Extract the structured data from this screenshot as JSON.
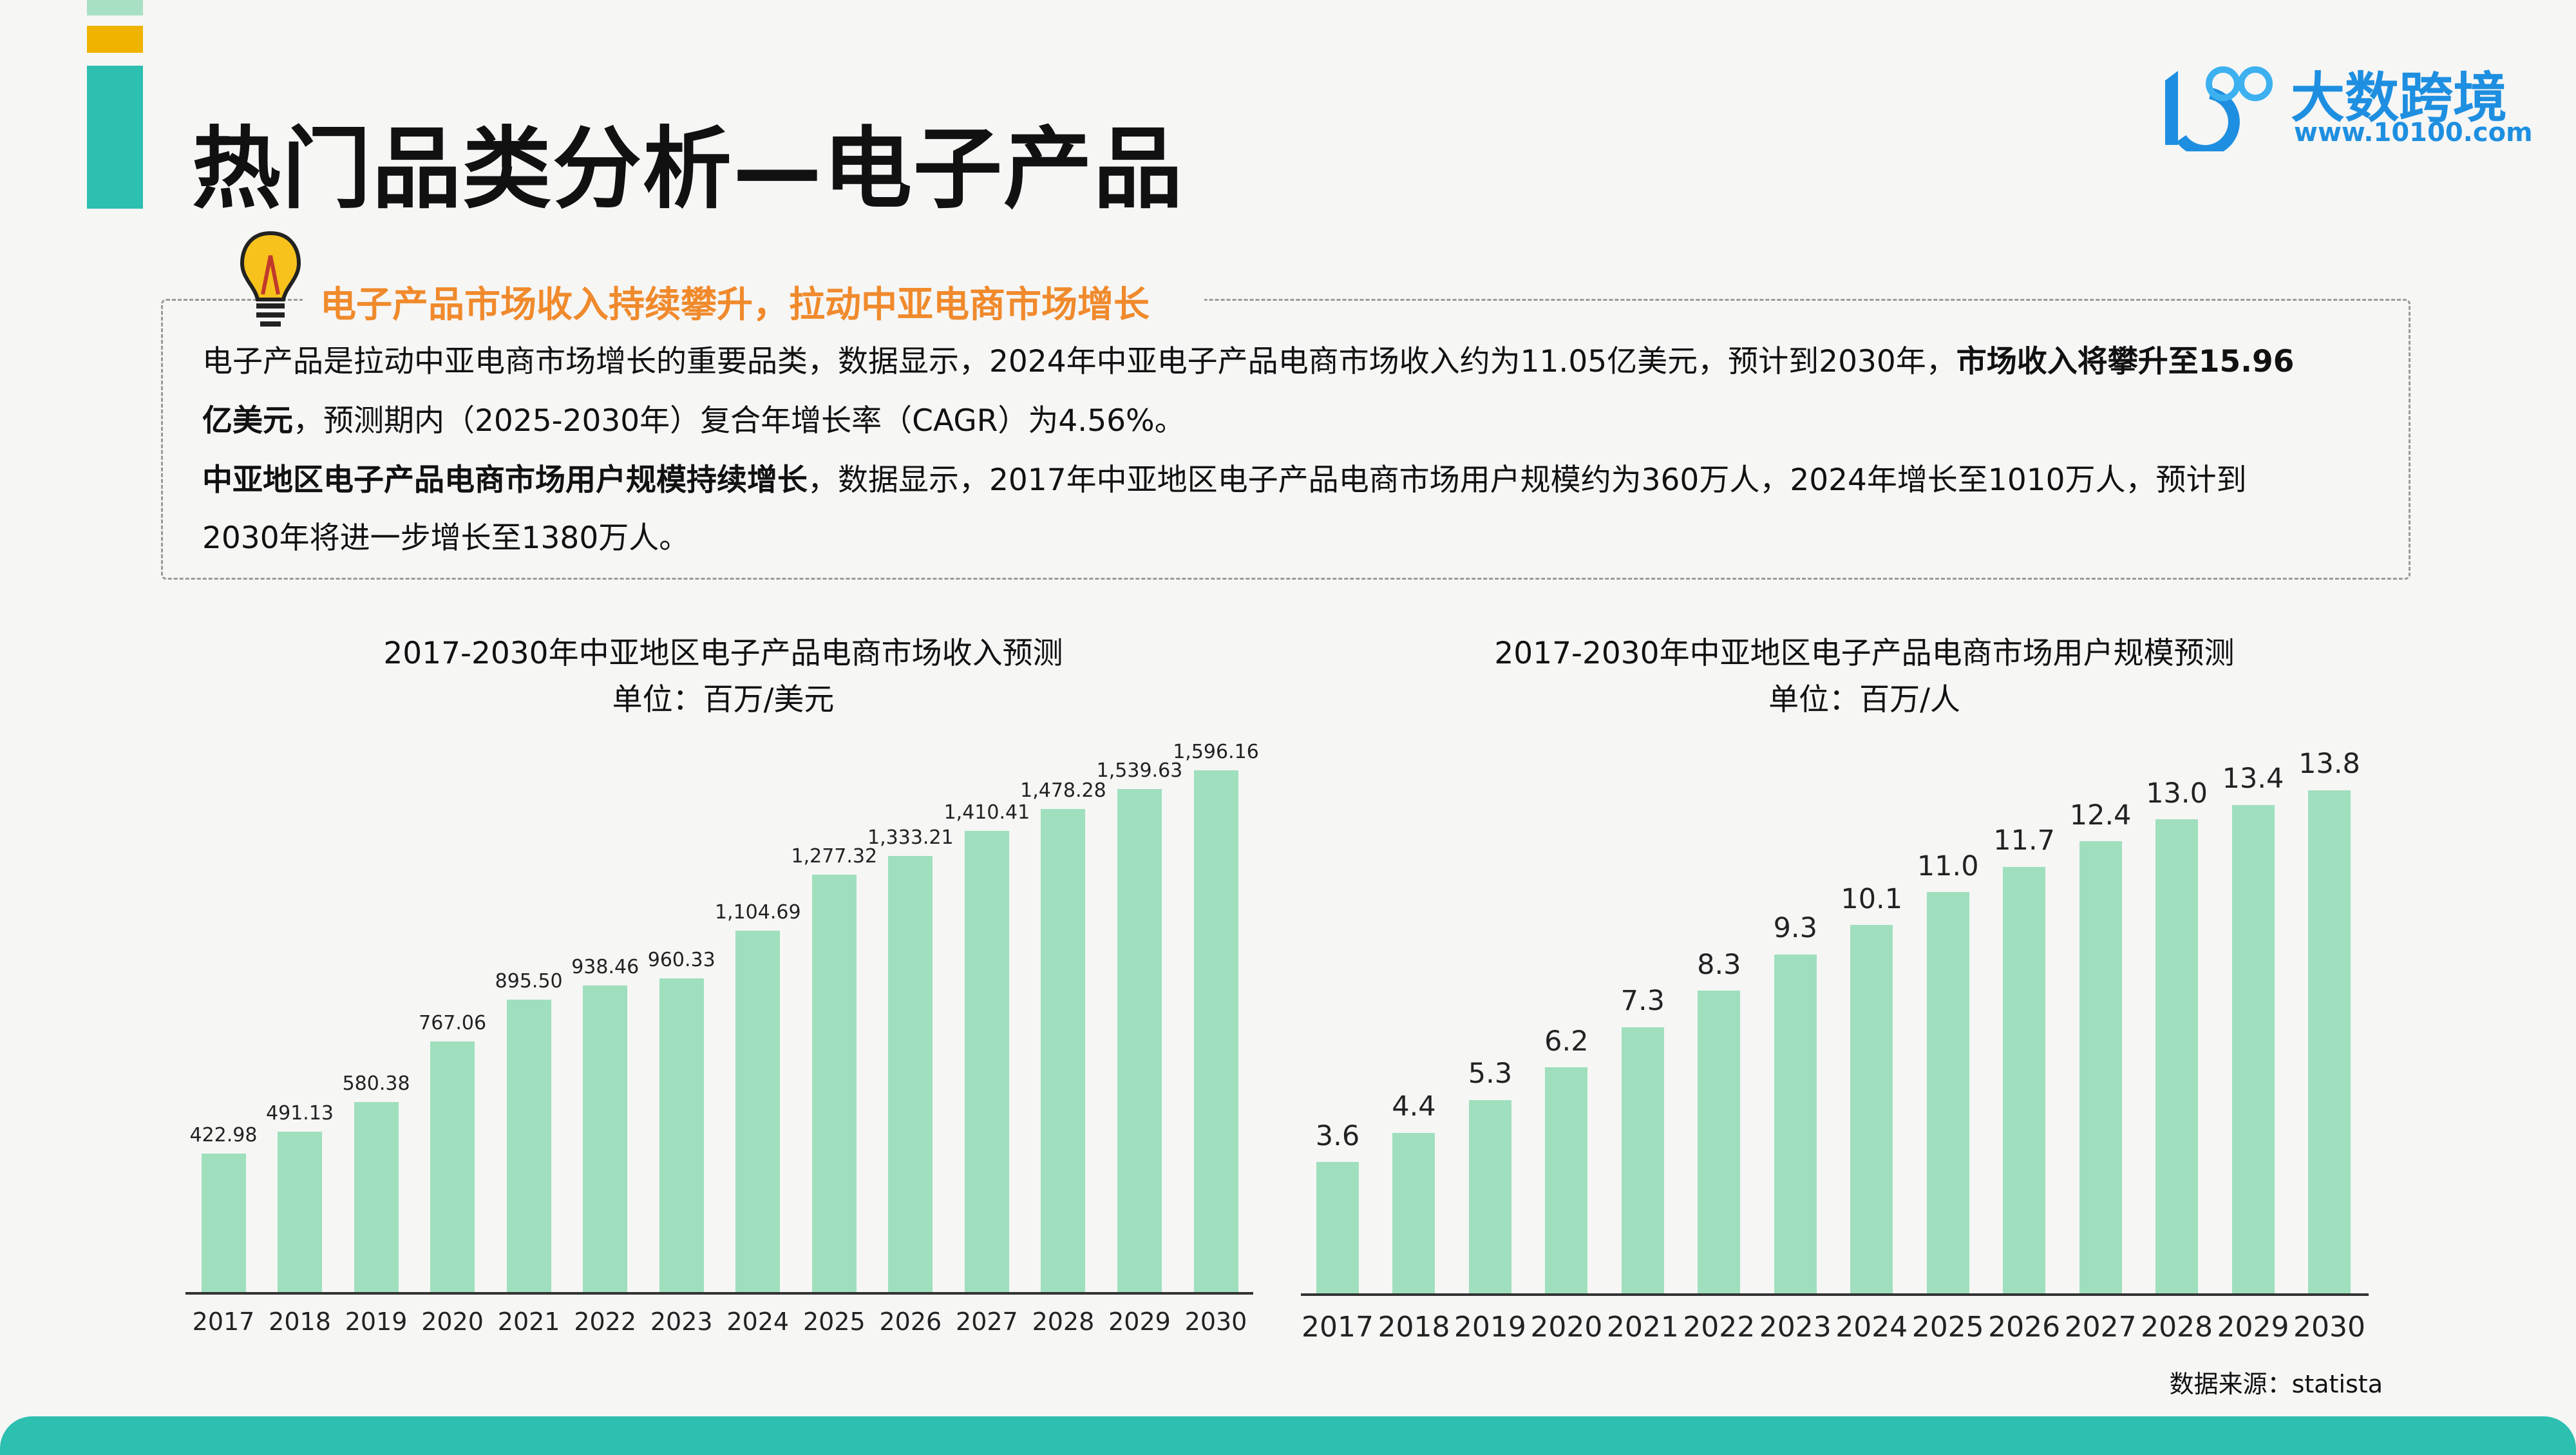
{
  "header": {
    "title": "热门品类分析—电子产品",
    "logo": {
      "text_cn": "大数跨境",
      "url": "www.10100.com",
      "mark": "100"
    }
  },
  "colors": {
    "teal": "#2dbfb0",
    "yellow": "#f0b400",
    "light_green": "#a8e0c3",
    "bar": "#9fdfbd",
    "heading_orange": "#f08a2c",
    "logo_blue": "#1e8fe0"
  },
  "insight": {
    "icon": "lightbulb-icon",
    "heading": "电子产品市场收入持续攀升，拉动中亚电商市场增长",
    "line1_a": "电子产品是拉动中亚电商市场增长的重要品类，数据显示，2024年中亚电子产品电商市场收入约为11.05亿美元，预计到2030年，",
    "line1_b": "市场收入将攀升至15.96",
    "line2_a": "亿美元",
    "line2_b": "，预测期内（2025-2030年）复合年增长率（CAGR）为4.56%。",
    "line3_a": "中亚地区电子产品电商市场用户规模持续增长",
    "line3_b": "，数据显示，2017年中亚地区电子产品电商市场用户规模约为360万人，2024年增长至1010万人，预计到",
    "line4": "2030年将进一步增长至1380万人。"
  },
  "chart_data": [
    {
      "type": "bar",
      "title": "2017-2030年中亚地区电子产品电商市场收入预测",
      "subtitle": "单位：百万/美元",
      "categories": [
        "2017",
        "2018",
        "2019",
        "2020",
        "2021",
        "2022",
        "2023",
        "2024",
        "2025",
        "2026",
        "2027",
        "2028",
        "2029",
        "2030"
      ],
      "values": [
        422.98,
        491.13,
        580.38,
        767.06,
        895.5,
        938.46,
        960.33,
        1104.69,
        1277.32,
        1333.21,
        1410.41,
        1478.28,
        1539.63,
        1596.16
      ],
      "labels": [
        "422.98",
        "491.13",
        "580.38",
        "767.06",
        "895.50",
        "938.46",
        "960.33",
        "1,104.69",
        "1,277.32",
        "1,333.21",
        "1,410.41",
        "1,478.28",
        "1,539.63",
        "1,596.16"
      ],
      "ylim": [
        0,
        1596.16
      ],
      "grid": false
    },
    {
      "type": "bar",
      "title": "2017-2030年中亚地区电子产品电商市场用户规模预测",
      "subtitle": "单位：百万/人",
      "categories": [
        "2017",
        "2018",
        "2019",
        "2020",
        "2021",
        "2022",
        "2023",
        "2024",
        "2025",
        "2026",
        "2027",
        "2028",
        "2029",
        "2030"
      ],
      "values": [
        3.6,
        4.4,
        5.3,
        6.2,
        7.3,
        8.3,
        9.3,
        10.1,
        11.0,
        11.7,
        12.4,
        13.0,
        13.4,
        13.8
      ],
      "labels": [
        "3.6",
        "4.4",
        "5.3",
        "6.2",
        "7.3",
        "8.3",
        "9.3",
        "10.1",
        "11.0",
        "11.7",
        "12.4",
        "13.0",
        "13.4",
        "13.8"
      ],
      "ylim": [
        0,
        13.8
      ],
      "grid": false
    }
  ],
  "source": "数据来源：statista"
}
